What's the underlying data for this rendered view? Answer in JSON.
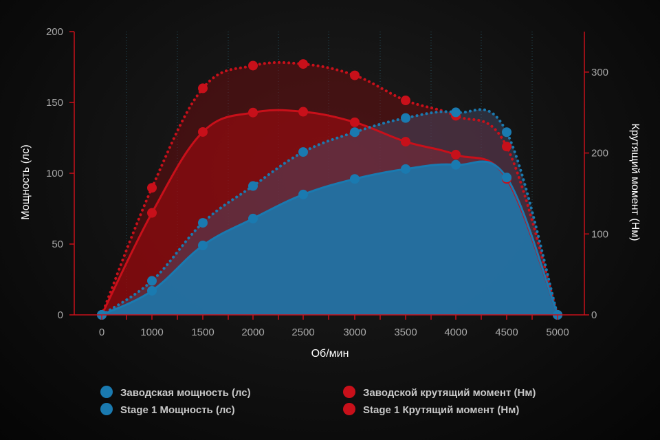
{
  "chart_data": {
    "type": "area",
    "xlabel": "Об/мин",
    "ylabel_left": "Мощность (лс)",
    "ylabel_right": "Крутящий момент (Нм)",
    "x": [
      0,
      1000,
      1500,
      2000,
      2500,
      3000,
      3500,
      4000,
      4500,
      5000
    ],
    "x_ticks": [
      "0",
      "1000",
      "1500",
      "2000",
      "2500",
      "3000",
      "3500",
      "4000",
      "4500",
      "5000"
    ],
    "ylim_left": [
      0,
      200
    ],
    "yticks_left": [
      "0",
      "50",
      "100",
      "150",
      "200"
    ],
    "ylim_right": [
      0,
      350
    ],
    "yticks_right": [
      "0",
      "100",
      "200",
      "300"
    ],
    "grid": "vertical dotted",
    "legend_position": "bottom",
    "series": [
      {
        "name": "Заводская мощность (лс)",
        "axis": "left",
        "color": "#1a7ab0",
        "style": "solid",
        "values": [
          0,
          17,
          49,
          68,
          85,
          96,
          103,
          106,
          97,
          0
        ]
      },
      {
        "name": "Stage 1 Мощность (лс)",
        "axis": "left",
        "color": "#1a7ab0",
        "style": "dotted",
        "values": [
          0,
          24,
          65,
          91,
          115,
          129,
          139,
          143,
          129,
          0
        ]
      },
      {
        "name": "Заводской крутящий момент (Нм)",
        "axis": "right",
        "color": "#c8101a",
        "style": "solid",
        "values": [
          0,
          126,
          226,
          250,
          251,
          238,
          214,
          198,
          168,
          0
        ]
      },
      {
        "name": "Stage 1 Крутящий момент (Нм)",
        "axis": "right",
        "color": "#c8101a",
        "style": "dotted",
        "values": [
          0,
          157,
          280,
          308,
          310,
          296,
          265,
          246,
          208,
          0
        ]
      }
    ]
  }
}
